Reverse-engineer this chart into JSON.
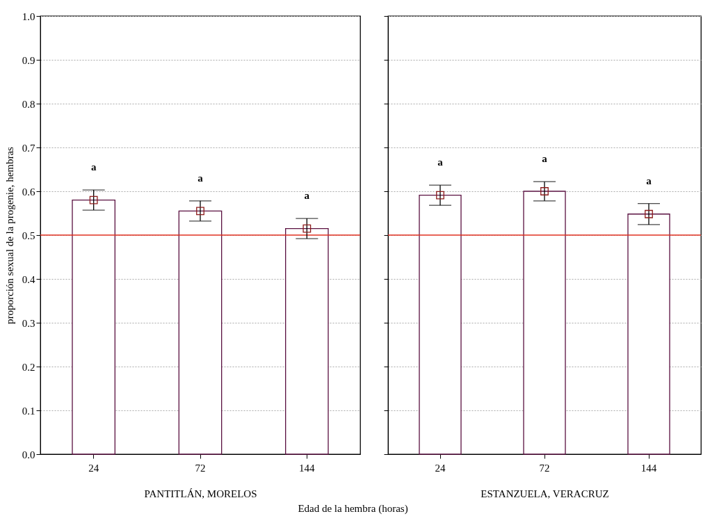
{
  "chart_data": [
    {
      "type": "bar",
      "xlabel": "PANTITLÁN, MORELOS",
      "ylabel": "proporción sexual de la progenie, hembras",
      "categories": [
        "24",
        "72",
        "144"
      ],
      "values": [
        0.58,
        0.555,
        0.515
      ],
      "errors": [
        0.023,
        0.023,
        0.023
      ],
      "color": "#ffffff",
      "series": [
        {
          "type": "scatter",
          "x": [
            "24",
            "72",
            "144"
          ],
          "values": [
            0.58,
            0.555,
            0.515
          ],
          "color": "#8b1a1a",
          "marker": "square"
        }
      ],
      "ylim": [
        0,
        1
      ],
      "yticks": [
        {
          "value": 0,
          "label": "0.0"
        },
        0.1,
        0.2,
        0.3,
        0.4,
        0.5,
        0.6,
        0.7,
        0.8,
        0.9,
        {
          "value": 1,
          "label": "1.0"
        }
      ],
      "grid": "y",
      "ref_lines": [
        {
          "axis": "y",
          "value": 0.5,
          "color": "#e03020"
        }
      ],
      "annotations": [
        "a",
        "a",
        "a",
        "Edad de la hembra (horas)"
      ]
    },
    {
      "type": "bar",
      "xlabel": "ESTANZUELA, VERACRUZ",
      "categories": [
        "24",
        "72",
        "144"
      ],
      "values": [
        0.591,
        0.6,
        0.548
      ],
      "errors": [
        0.023,
        0.022,
        0.024
      ],
      "color": "#ffffff",
      "series": [
        {
          "type": "scatter",
          "x": [
            "24",
            "72",
            "144"
          ],
          "values": [
            0.591,
            0.6,
            0.548
          ],
          "color": "#8b1a1a",
          "marker": "square"
        }
      ],
      "ylim": [
        0,
        1
      ],
      "yticks": [
        0,
        0.1,
        0.2,
        0.3,
        0.4,
        0.5,
        0.6,
        0.7,
        0.8,
        0.9,
        1
      ],
      "grid": "y",
      "tick_labels": "x",
      "ref_lines": [
        {
          "axis": "y",
          "value": 0.5,
          "color": "#e03020"
        }
      ],
      "annotations": [
        "a",
        "a",
        "a"
      ]
    }
  ]
}
